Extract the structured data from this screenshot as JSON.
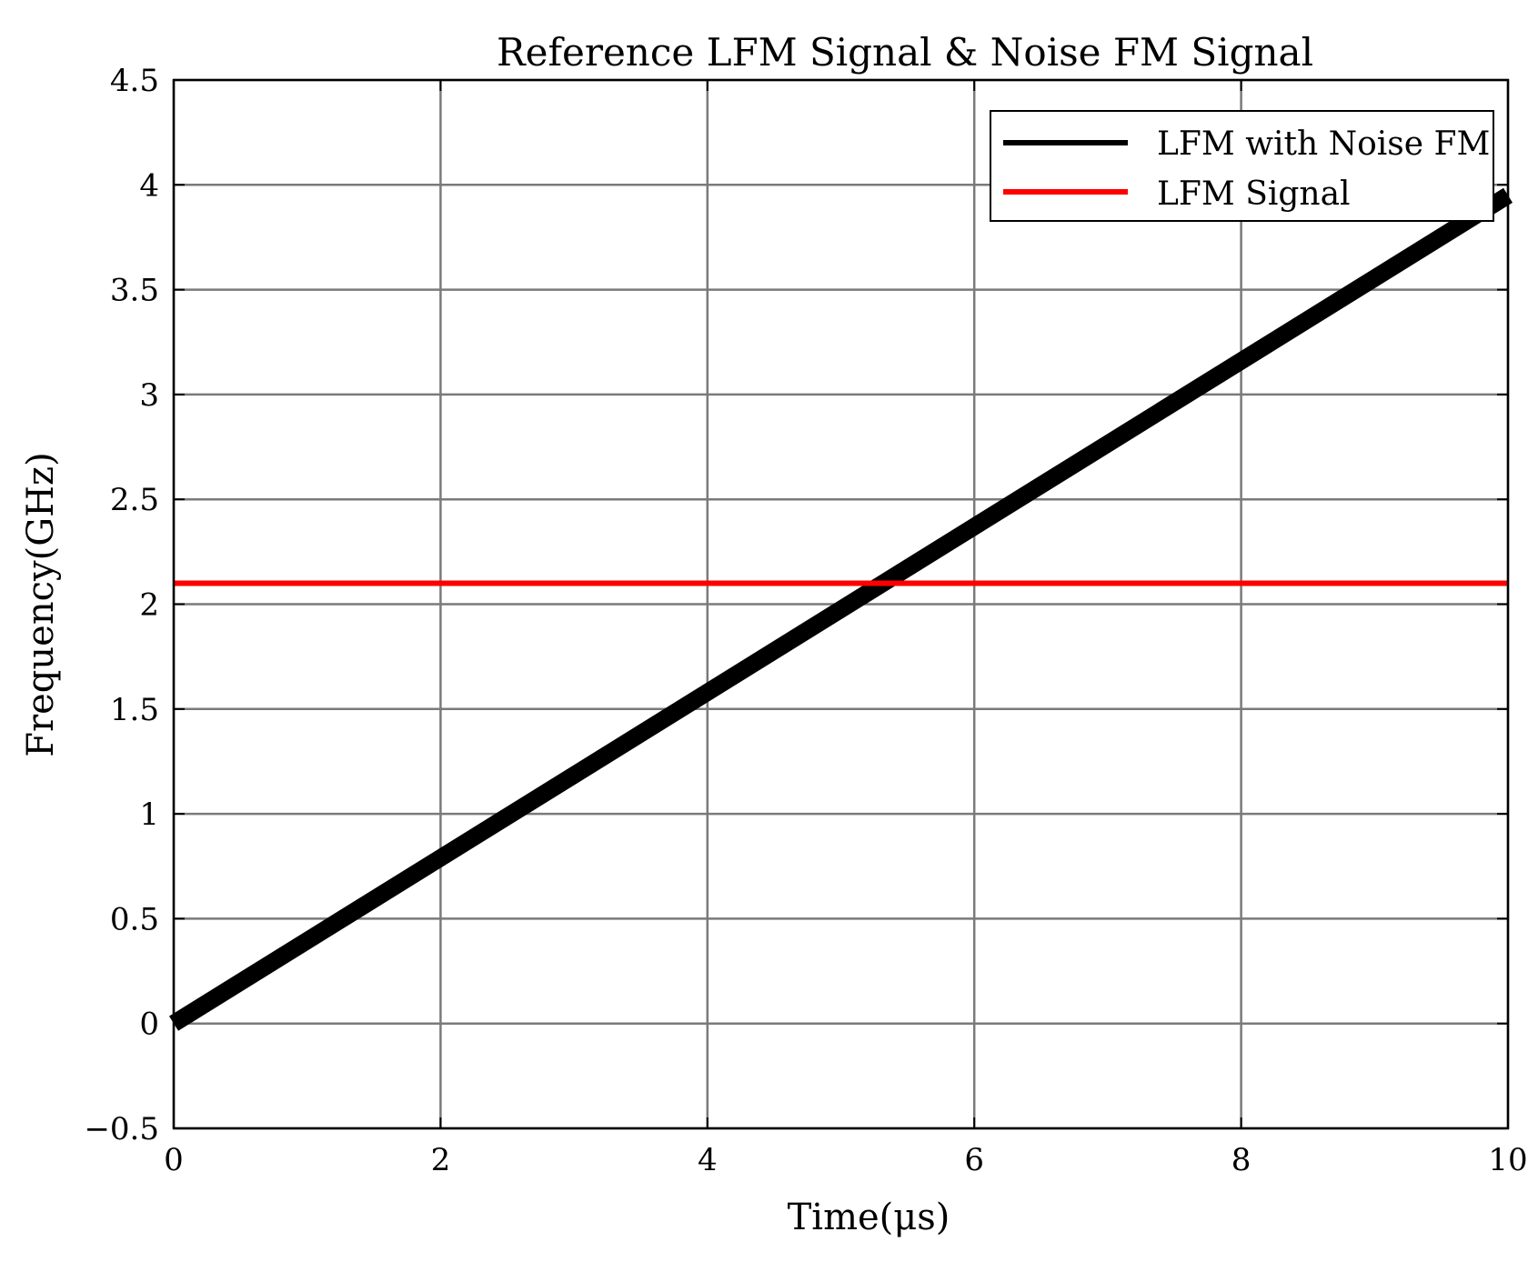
{
  "chart_data": {
    "type": "line",
    "title": "Reference LFM Signal & Noise FM Signal",
    "xlabel": "Time(μs)",
    "ylabel": "Frequency(GHz)",
    "xlim": [
      0,
      10
    ],
    "ylim": [
      -0.5,
      4.5
    ],
    "x_ticks": [
      "0",
      "2",
      "4",
      "6",
      "8",
      "10"
    ],
    "y_ticks": [
      "−0.5",
      "0",
      "0.5",
      "1",
      "1.5",
      "2",
      "2.5",
      "3",
      "3.5",
      "4",
      "4.5"
    ],
    "grid": true,
    "legend_position": "top-right",
    "series": [
      {
        "name": "LFM with Noise FM",
        "color": "#000000",
        "x": [
          0,
          10
        ],
        "y": [
          0.0,
          3.95
        ]
      },
      {
        "name": "LFM Signal",
        "color": "#ff0000",
        "x": [
          0,
          10
        ],
        "y": [
          2.1,
          2.1
        ]
      }
    ]
  }
}
